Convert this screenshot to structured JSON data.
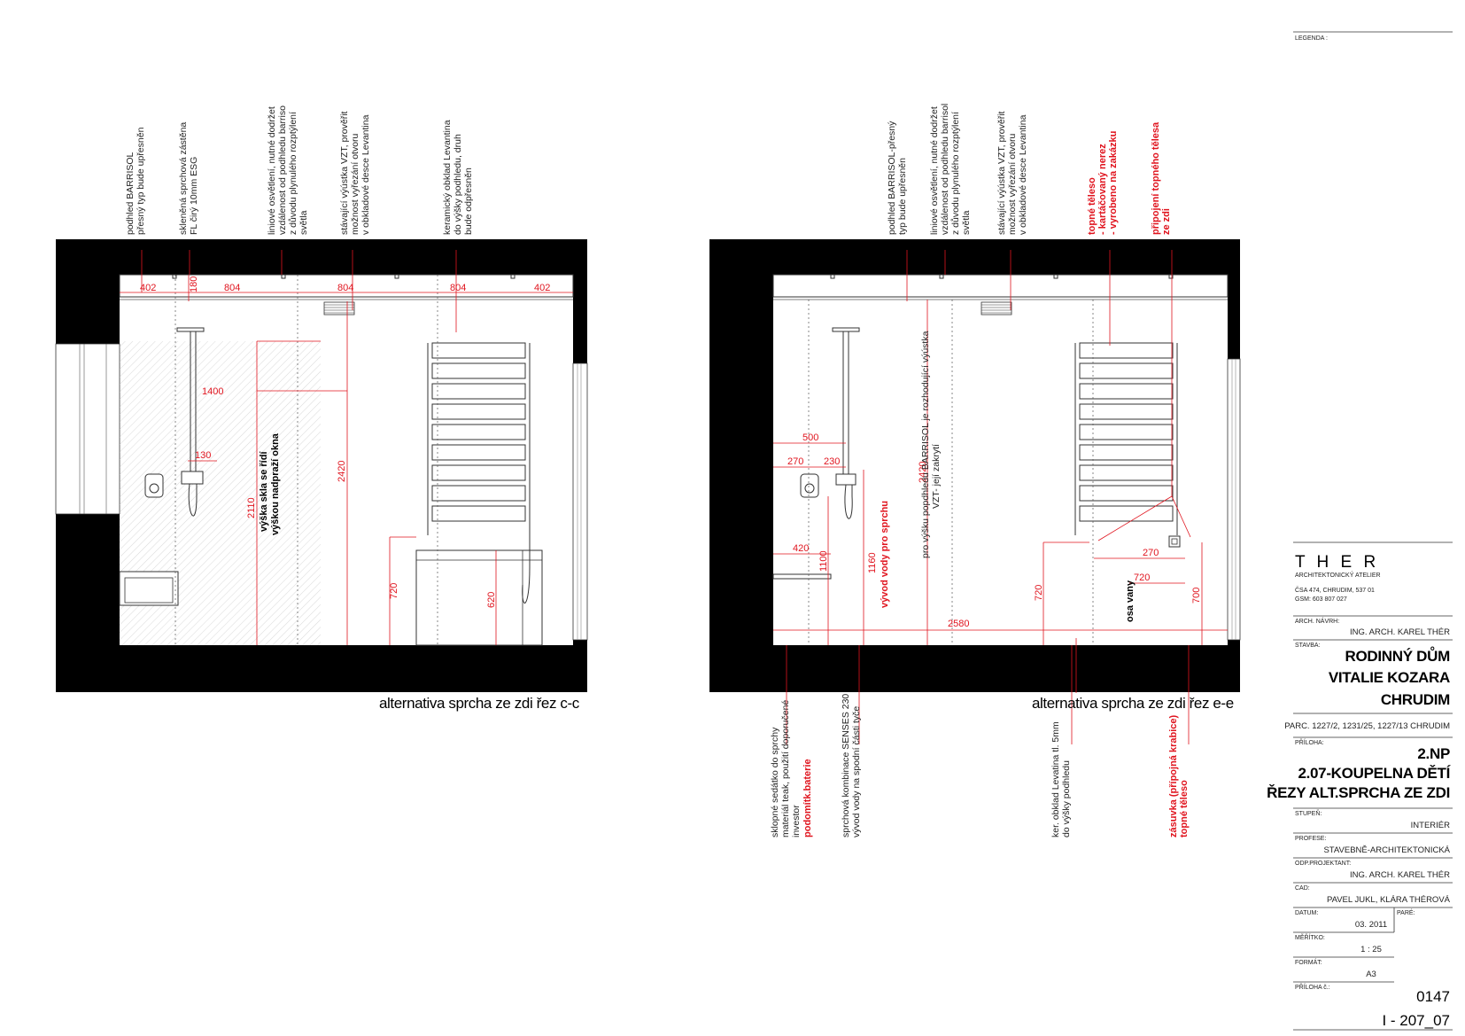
{
  "legend_label": "LEGENDA :",
  "section_cc": {
    "caption": "alternativa sprcha ze zdi řez c-c",
    "notes": [
      [
        "podhled BARRISOL",
        "přesný typ bude upřesněn"
      ],
      [
        "skleněná sprchová zástěna",
        "FL čirý 10mm ESG"
      ],
      [
        "liniové osvětlení, nutné dodržet",
        "vzdálenost od podhledu barriso",
        "z důvodu plynulého rozptýlení",
        "světla"
      ],
      [
        "stávající výústka VZT, prověřit",
        "možnost vyřezání otvoru",
        "v obkladové desce Levantina"
      ],
      [
        "keramický obklad Levantina",
        "do výšky podhledu, druh",
        "bude odpřesněn"
      ]
    ],
    "dims": {
      "d402a": "402",
      "d180": "180",
      "d804a": "804",
      "d804b": "804",
      "d804c": "804",
      "d402b": "402",
      "d1400": "1400",
      "d130": "130",
      "d2110": "2110",
      "d2420": "2420",
      "d720": "720",
      "d620": "620"
    },
    "glass_note": [
      "výška skla se řídí",
      "výškou nadpraží okna"
    ]
  },
  "section_ee": {
    "caption": "alternativa sprcha ze zdi řez e-e",
    "top_notes": [
      [
        "podhled BARRISOL-přesný",
        "typ bude upřesněn"
      ],
      [
        "liniové osvětlení, nutné dodržet",
        "vzdálenost od podhledu barrisol",
        "z důvodu plynulého rozptýlení",
        "světla"
      ],
      [
        "stávající výústka VZT, prověřit",
        "možnost vyřezání otvoru",
        "v obkladové desce Levantina"
      ]
    ],
    "red_top_notes": [
      [
        "topné těleso",
        "- kartáčovaný nerez",
        "- vyrobeno na zakázku"
      ],
      [
        "připojení topného tělesa",
        "ze zdi"
      ]
    ],
    "inner_note": [
      "pro výšku popdhledu BARRISOL je rozhodující výústka",
      "VZT- její zakrytí"
    ],
    "inner_red_note": "vývod vody pro sprchu",
    "osa": "osa vany",
    "dims": {
      "d500": "500",
      "d270a": "270",
      "d230": "230",
      "d420": "420",
      "d1100": "1100",
      "d1160": "1160",
      "d2420": "2420",
      "d2580": "2580",
      "d720": "720",
      "d270b": "270",
      "d720b": "720",
      "d700": "700"
    },
    "bottom_notes": [
      [
        "sklopné sedátko do sprchy",
        "materiál teak, použití doporučené",
        "investor"
      ],
      [
        "sprchová kombinace SENSES 230",
        "vývod vody na spodní části tyče"
      ],
      [
        "ker. obklad Levatina tl. 5mm",
        "do výšky podhledu"
      ]
    ],
    "bottom_red_notes": [
      [
        "podomítk.baterie"
      ],
      [
        "zásuvka (přípojná krabice)",
        "topné těleso"
      ]
    ]
  },
  "title_block": {
    "firm_name": "T H E R",
    "firm_sub": "ARCHITEKTONICKÝ ATELIER",
    "address": "ČSA 474, CHRUDIM, 537 01",
    "gsm": "GSM:  603 807 027",
    "arch_label": "ARCH. NÁVRH:",
    "arch_value": "ING. ARCH. KAREL THÉR",
    "stavba_label": "STAVBA:",
    "stavba_lines": [
      "RODINNÝ DŮM",
      "VITALIE KOZARA",
      "CHRUDIM"
    ],
    "parc": "PARC. 1227/2, 1231/25, 1227/13   CHRUDIM",
    "priloha_label": "PŘÍLOHA:",
    "priloha_lines": [
      "2.NP",
      "2.07-KOUPELNA DĚTÍ",
      "ŘEZY ALT.SPRCHA ZE ZDI"
    ],
    "stupen_label": "STUPEŇ:",
    "stupen_value": "INTERIÉR",
    "profese_label": "PROFESE:",
    "profese_value": "STAVEBNĚ-ARCHITEKTONICKÁ",
    "odp_label": "ODP.PROJEKTANT:",
    "odp_value": "ING. ARCH. KAREL THÉR",
    "cad_label": "CAD:",
    "cad_value": "PAVEL JUKL, KLÁRA THÉROVÁ",
    "datum_label": "DATUM:",
    "datum_value": "03. 2011",
    "pare_label": "PARÉ:",
    "meritko_label": "MĚŘÍTKO:",
    "meritko_value": "1 : 25",
    "format_label": "FORMÁT:",
    "format_value": "A3",
    "priloha_c_label": "PŘÍLOHA č.:",
    "priloha_c_value": "0147",
    "drawing_no": "I - 207_07"
  }
}
